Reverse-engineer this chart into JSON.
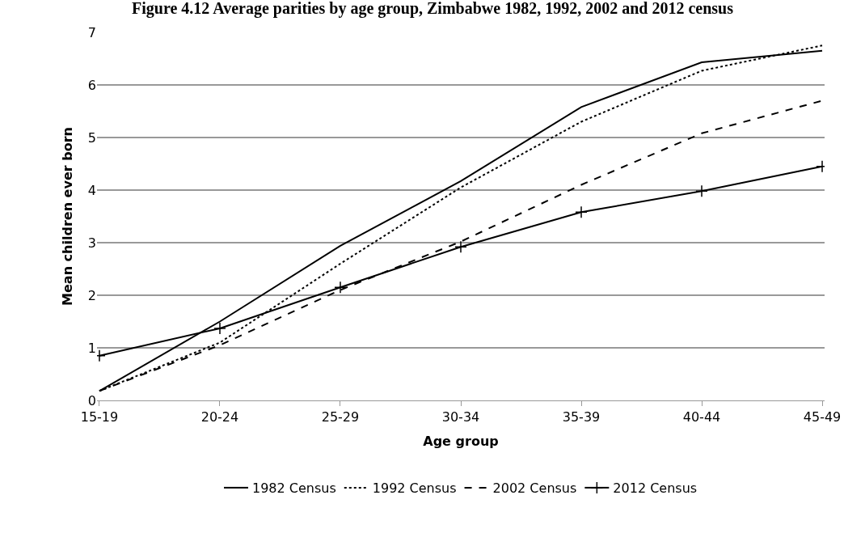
{
  "chart_data": {
    "type": "line",
    "title": "Figure 4.12 Average parities by age group, Zimbabwe 1982, 1992, 2002 and 2012 census",
    "xlabel": "Age group",
    "ylabel": "Mean children ever born",
    "categories": [
      "15-19",
      "20-24",
      "25-29",
      "30-34",
      "35-39",
      "40-44",
      "45-49"
    ],
    "series": [
      {
        "name": "1982 Census",
        "color": "#000000",
        "line_style": "solid",
        "marker": "none",
        "values": [
          0.18,
          1.5,
          2.94,
          4.17,
          5.58,
          6.43,
          6.65
        ]
      },
      {
        "name": "1992 Census",
        "color": "#000000",
        "line_style": "dotted",
        "marker": "none",
        "values": [
          0.18,
          1.1,
          2.6,
          4.05,
          5.3,
          6.27,
          6.75
        ]
      },
      {
        "name": "2002 Census",
        "color": "#000000",
        "line_style": "dashed",
        "marker": "none",
        "values": [
          0.18,
          1.05,
          2.1,
          3.02,
          4.1,
          5.08,
          5.7
        ]
      },
      {
        "name": "2012 Census",
        "color": "#000000",
        "line_style": "solid",
        "marker": "cross",
        "values": [
          0.85,
          1.37,
          2.15,
          2.92,
          3.58,
          3.98,
          4.45
        ]
      }
    ],
    "ylim": [
      0,
      7
    ],
    "yticks": [
      0,
      1,
      2,
      3,
      4,
      5,
      6,
      7
    ],
    "grid": "y",
    "legend": "bottom"
  }
}
